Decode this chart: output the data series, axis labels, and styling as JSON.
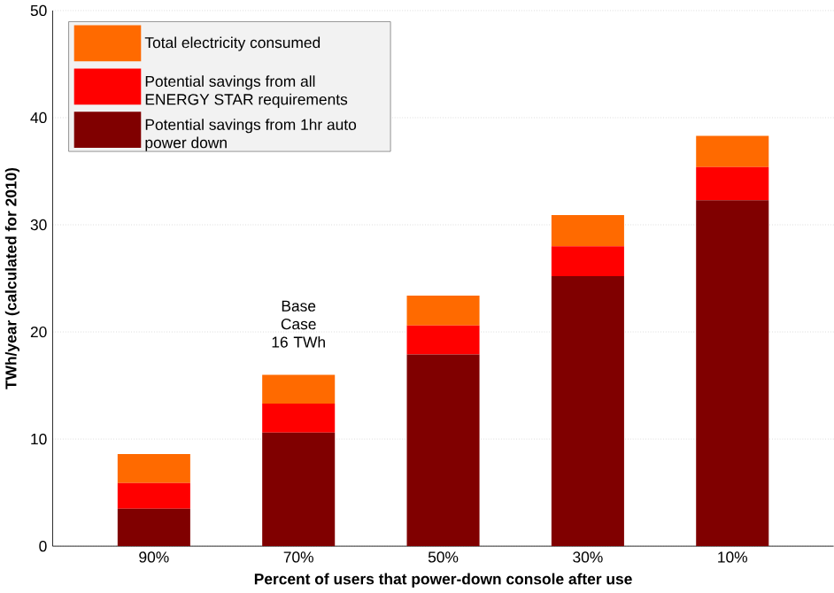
{
  "chart_data": {
    "type": "bar",
    "stacked": true,
    "categories": [
      "90%",
      "70%",
      "50%",
      "30%",
      "10%"
    ],
    "xlabel": "Percent of users that power-down console after use",
    "ylabel": "TWh/year (calculated for 2010)",
    "ylim": [
      0,
      50
    ],
    "yticks": [
      0,
      10,
      20,
      30,
      40,
      50
    ],
    "grid": "y",
    "legend": "top left",
    "series": [
      {
        "name": "Potential savings from 1hr auto power down",
        "color": "#800000",
        "values": [
          3.5,
          10.6,
          17.9,
          25.2,
          32.3
        ]
      },
      {
        "name": "Potential savings from all ENERGY STAR requirements",
        "color": "#ff0000",
        "values": [
          2.4,
          2.7,
          2.7,
          2.8,
          3.1
        ]
      },
      {
        "name": "Total electricity consumed",
        "color": "#ff6a00",
        "values": [
          2.7,
          2.7,
          2.8,
          2.9,
          2.9
        ]
      }
    ],
    "annotations": [
      {
        "text": "Base Case 16 TWh",
        "x": "70%",
        "y": 16
      }
    ]
  }
}
